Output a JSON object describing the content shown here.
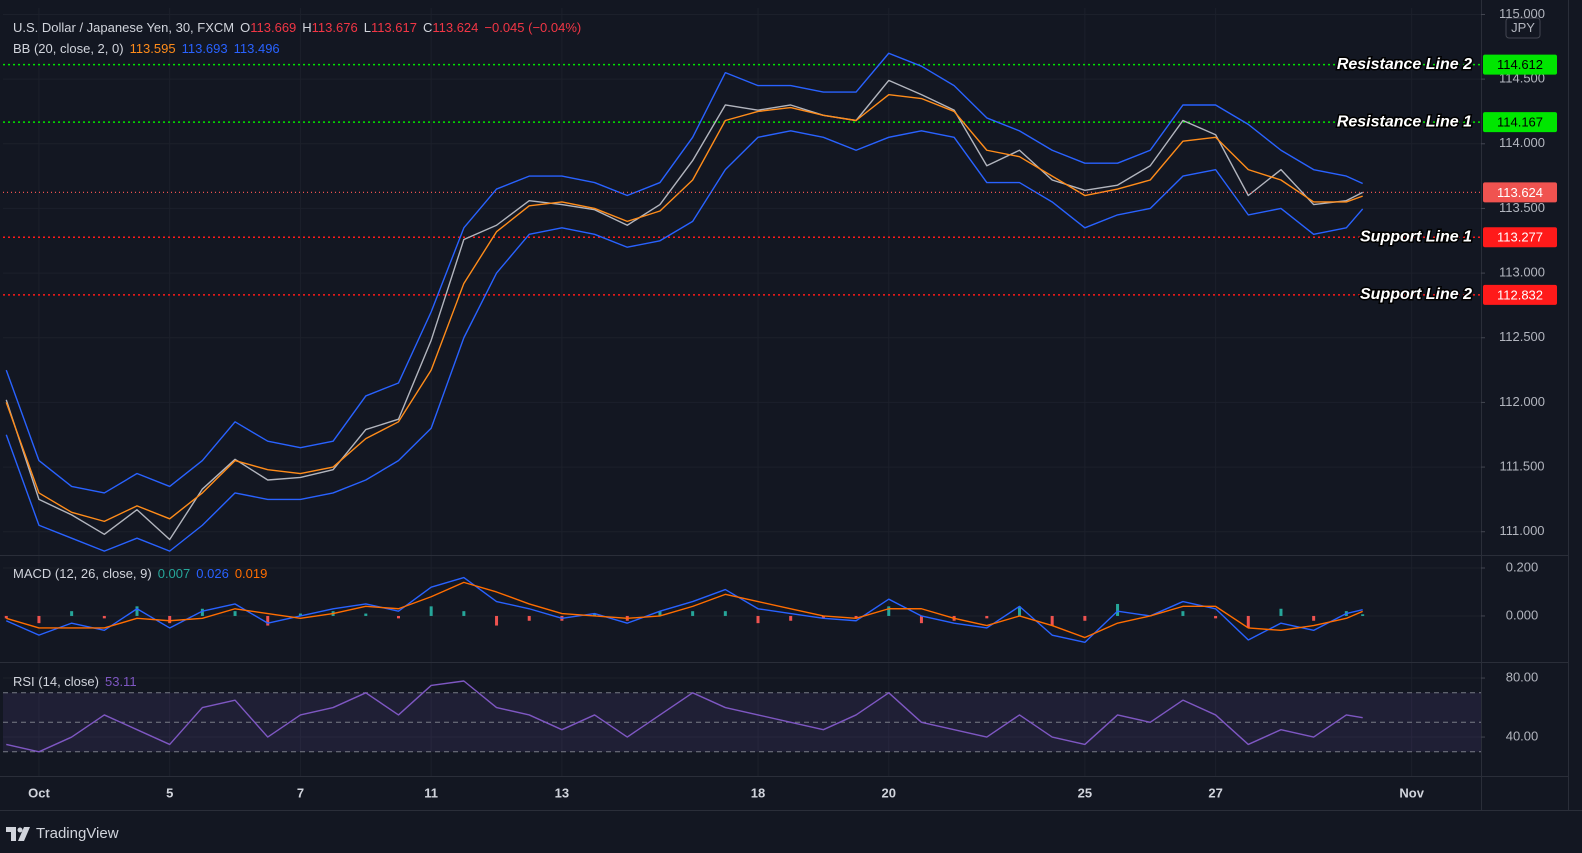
{
  "chart_data": [
    {
      "type": "line",
      "symbol": "U.S. Dollar / Japanese Yen, 30, FXCM",
      "ohlc": [
        {
          "key": "O",
          "value": 113.669
        },
        {
          "key": "H",
          "value": 113.676
        },
        {
          "key": "L",
          "value": 113.617
        },
        {
          "key": "C",
          "value": 113.624
        }
      ],
      "change": "−0.045 (−0.04%)",
      "indicator": "BB (20, close, 2, 0)",
      "currency": "JPY",
      "x": [
        -0.5,
        0,
        0.5,
        1,
        1.5,
        2,
        2.5,
        3,
        3.5,
        4,
        4.5,
        5,
        5.5,
        6,
        6.5,
        7,
        7.5,
        8,
        8.5,
        9,
        9.5,
        10,
        10.5,
        11,
        11.5,
        12,
        12.5,
        13,
        13.5,
        14,
        14.5,
        15,
        15.5,
        16,
        16.5,
        17,
        17.5,
        18,
        18.5,
        19,
        19.5,
        20,
        20.25
      ],
      "xlim": [
        -0.55,
        22.06
      ],
      "xticks": [
        {
          "value": 0,
          "label": "Oct"
        },
        {
          "value": 2,
          "label": "5"
        },
        {
          "value": 4,
          "label": "7"
        },
        {
          "value": 6,
          "label": "11"
        },
        {
          "value": 8,
          "label": "13"
        },
        {
          "value": 11,
          "label": "18"
        },
        {
          "value": 13,
          "label": "20"
        },
        {
          "value": 16,
          "label": "25"
        },
        {
          "value": 18,
          "label": "27"
        },
        {
          "value": 21,
          "label": "Nov"
        }
      ],
      "ylim": [
        110.82,
        115.05
      ],
      "yticks": [
        {
          "value": 115,
          "label": "115.000"
        },
        {
          "value": 114.5,
          "label": "114.500"
        },
        {
          "value": 114,
          "label": "114.000"
        },
        {
          "value": 113.5,
          "label": "113.500"
        },
        {
          "value": 113,
          "label": "113.000"
        },
        {
          "value": 112.5,
          "label": "112.500"
        },
        {
          "value": 112,
          "label": "112.000"
        },
        {
          "value": 111.5,
          "label": "111.500"
        },
        {
          "value": 111,
          "label": "111.000"
        }
      ],
      "grid": true,
      "last_color": "#f05350",
      "series": [
        {
          "color": "#b2b5be",
          "values": [
            112.02,
            111.25,
            111.13,
            110.98,
            111.17,
            110.94,
            111.33,
            111.56,
            111.4,
            111.42,
            111.48,
            111.79,
            111.87,
            112.48,
            113.26,
            113.37,
            113.56,
            113.53,
            113.49,
            113.37,
            113.53,
            113.87,
            114.3,
            114.26,
            114.3,
            114.22,
            114.18,
            114.49,
            114.38,
            114.26,
            113.83,
            113.95,
            113.72,
            113.64,
            113.68,
            113.83,
            114.18,
            114.07,
            113.6,
            113.8,
            113.53,
            113.56,
            113.624
          ]
        },
        {
          "color": "#ff8c1a",
          "values": [
            112.0,
            111.3,
            111.15,
            111.08,
            111.2,
            111.1,
            111.3,
            111.55,
            111.48,
            111.45,
            111.5,
            111.72,
            111.85,
            112.25,
            112.92,
            113.32,
            113.52,
            113.55,
            113.5,
            113.4,
            113.48,
            113.72,
            114.18,
            114.25,
            114.28,
            114.22,
            114.18,
            114.38,
            114.35,
            114.25,
            113.95,
            113.9,
            113.75,
            113.6,
            113.65,
            113.72,
            114.02,
            114.05,
            113.8,
            113.72,
            113.55,
            113.55,
            113.595
          ]
        },
        {
          "color": "#2962ff",
          "values": [
            112.25,
            111.55,
            111.35,
            111.3,
            111.45,
            111.35,
            111.55,
            111.85,
            111.7,
            111.65,
            111.7,
            112.05,
            112.15,
            112.7,
            113.35,
            113.65,
            113.75,
            113.75,
            113.7,
            113.6,
            113.7,
            114.05,
            114.55,
            114.45,
            114.45,
            114.4,
            114.4,
            114.7,
            114.6,
            114.45,
            114.2,
            114.1,
            113.95,
            113.85,
            113.85,
            113.95,
            114.3,
            114.3,
            114.15,
            113.95,
            113.8,
            113.75,
            113.693
          ]
        },
        {
          "color": "#2962ff",
          "values": [
            111.75,
            111.05,
            110.95,
            110.85,
            110.95,
            110.85,
            111.05,
            111.3,
            111.25,
            111.25,
            111.3,
            111.4,
            111.55,
            111.8,
            112.5,
            113.0,
            113.3,
            113.35,
            113.3,
            113.2,
            113.25,
            113.4,
            113.8,
            114.05,
            114.1,
            114.05,
            113.95,
            114.05,
            114.1,
            114.05,
            113.7,
            113.7,
            113.55,
            113.35,
            113.45,
            113.5,
            113.75,
            113.8,
            113.45,
            113.5,
            113.3,
            113.35,
            113.496
          ]
        }
      ],
      "hlines": [
        {
          "label": "Resistance Line 2",
          "value": 114.612,
          "color": "#00e600",
          "text_color": "#000000"
        },
        {
          "label": "Resistance Line 1",
          "value": 114.167,
          "color": "#00e600",
          "text_color": "#000000"
        },
        {
          "label": "Support Line 1",
          "value": 113.277,
          "color": "#ff1a1a",
          "text_color": "#ffffff"
        },
        {
          "label": "Support Line 2",
          "value": 112.832,
          "color": "#ff1a1a",
          "text_color": "#ffffff"
        }
      ]
    },
    {
      "type": "line",
      "indicator": "MACD (12, 26, close, 9)",
      "ylim": [
        -0.192,
        0.25
      ],
      "yticks": [
        {
          "value": 0.2,
          "label": "0.200"
        },
        {
          "value": 0,
          "label": "0.000"
        }
      ],
      "histogram": {
        "up_color": "#26a69a",
        "down_color": "#ef5350",
        "values": [
          -0.01,
          -0.03,
          0.02,
          -0.01,
          0.04,
          -0.03,
          0.03,
          0.02,
          -0.04,
          0.01,
          0.02,
          0.01,
          -0.01,
          0.04,
          0.02,
          -0.04,
          -0.02,
          -0.02,
          0.01,
          -0.02,
          0.02,
          0.02,
          0.02,
          -0.03,
          -0.02,
          -0.01,
          -0.01,
          0.04,
          -0.03,
          -0.02,
          -0.01,
          0.04,
          -0.04,
          -0.02,
          0.05,
          0.0,
          0.02,
          -0.01,
          -0.05,
          0.03,
          -0.02,
          0.02,
          0.007
        ]
      },
      "series": [
        {
          "color": "#2962ff",
          "values": [
            -0.02,
            -0.08,
            -0.03,
            -0.06,
            0.03,
            -0.05,
            0.02,
            0.05,
            -0.03,
            0.0,
            0.03,
            0.05,
            0.02,
            0.12,
            0.16,
            0.06,
            0.03,
            -0.01,
            0.01,
            -0.03,
            0.02,
            0.06,
            0.11,
            0.03,
            0.01,
            -0.01,
            -0.02,
            0.07,
            0.0,
            -0.03,
            -0.05,
            0.04,
            -0.08,
            -0.11,
            0.02,
            0.0,
            0.06,
            0.03,
            -0.1,
            -0.03,
            -0.06,
            0.01,
            0.026
          ]
        },
        {
          "color": "#ff6d00",
          "values": [
            -0.01,
            -0.05,
            -0.05,
            -0.05,
            -0.01,
            -0.02,
            -0.01,
            0.03,
            0.01,
            -0.01,
            0.01,
            0.04,
            0.03,
            0.08,
            0.14,
            0.1,
            0.05,
            0.01,
            0.0,
            -0.01,
            0.0,
            0.04,
            0.09,
            0.06,
            0.03,
            0.0,
            -0.01,
            0.03,
            0.03,
            -0.01,
            -0.04,
            0.0,
            -0.04,
            -0.09,
            -0.03,
            0.0,
            0.04,
            0.04,
            -0.05,
            -0.06,
            -0.04,
            -0.01,
            0.019
          ]
        }
      ]
    },
    {
      "type": "line",
      "indicator": "RSI (14, close)",
      "ylim": [
        13.6,
        90.2
      ],
      "yticks": [
        {
          "value": 80,
          "label": "80.00"
        },
        {
          "value": 40,
          "label": "40.00"
        }
      ],
      "levels": [
        70,
        50,
        30
      ],
      "band": [
        30,
        70
      ],
      "band_color": "rgba(126,87,194,0.12)",
      "series": [
        {
          "color": "#7e57c2",
          "values": [
            35,
            30,
            40,
            55,
            45,
            35,
            60,
            65,
            40,
            55,
            60,
            70,
            55,
            75,
            78,
            60,
            55,
            45,
            55,
            40,
            55,
            70,
            60,
            55,
            50,
            45,
            55,
            70,
            50,
            45,
            40,
            55,
            40,
            35,
            55,
            50,
            65,
            55,
            35,
            45,
            40,
            55,
            53.11
          ]
        }
      ]
    }
  ],
  "footer": {
    "brand": "TradingView"
  }
}
